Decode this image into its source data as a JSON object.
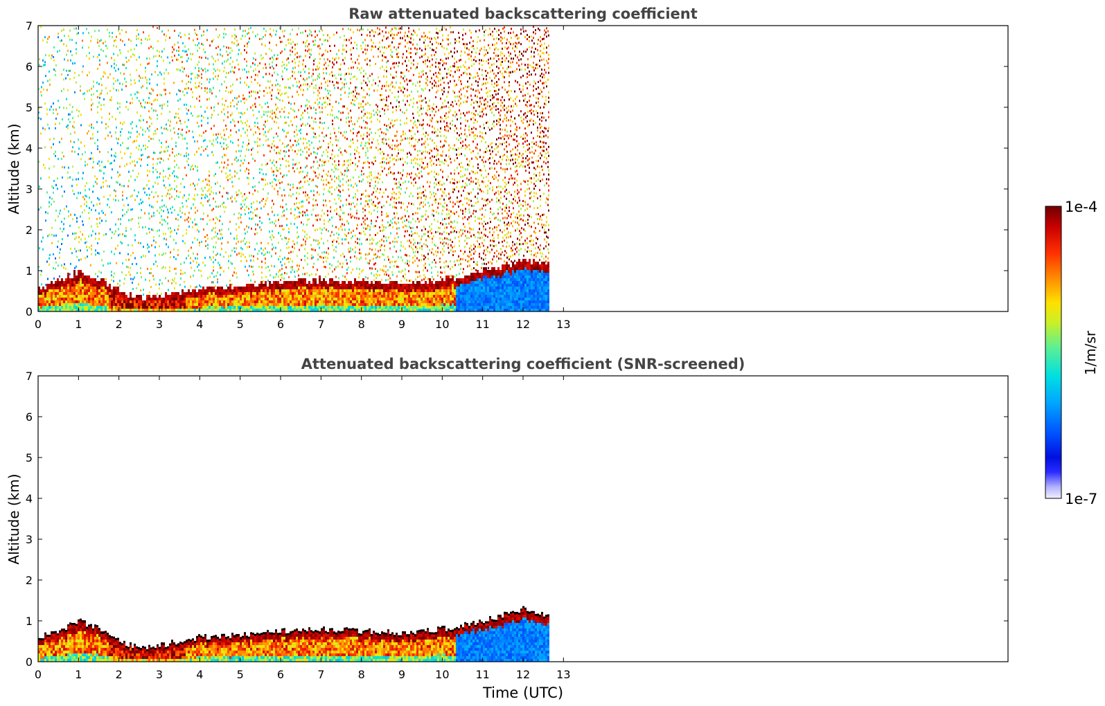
{
  "chart_data": [
    {
      "type": "heatmap",
      "title": "Raw attenuated backscattering coefficient",
      "xlabel": "",
      "ylabel": "Altitude (km)",
      "xlim": [
        0,
        24
      ],
      "ylim": [
        0,
        7
      ],
      "xticks": [
        "0",
        "1",
        "2",
        "3",
        "4",
        "5",
        "6",
        "7",
        "8",
        "9",
        "10",
        "11",
        "12",
        "13"
      ],
      "yticks": [
        "0",
        "1",
        "2",
        "3",
        "4",
        "5",
        "6",
        "7"
      ],
      "data_end_hour": 12.65,
      "boundary_layer_top_km": [
        {
          "t": 0.0,
          "z": 0.55
        },
        {
          "t": 0.5,
          "z": 0.7
        },
        {
          "t": 1.0,
          "z": 0.95
        },
        {
          "t": 1.5,
          "z": 0.75
        },
        {
          "t": 2.0,
          "z": 0.45
        },
        {
          "t": 2.5,
          "z": 0.3
        },
        {
          "t": 3.0,
          "z": 0.35
        },
        {
          "t": 3.5,
          "z": 0.45
        },
        {
          "t": 4.0,
          "z": 0.55
        },
        {
          "t": 5.0,
          "z": 0.6
        },
        {
          "t": 6.0,
          "z": 0.7
        },
        {
          "t": 7.0,
          "z": 0.75
        },
        {
          "t": 8.0,
          "z": 0.7
        },
        {
          "t": 9.0,
          "z": 0.65
        },
        {
          "t": 10.0,
          "z": 0.75
        },
        {
          "t": 11.0,
          "z": 0.95
        },
        {
          "t": 11.5,
          "z": 1.1
        },
        {
          "t": 12.0,
          "z": 1.25
        },
        {
          "t": 12.6,
          "z": 1.1
        }
      ]
    },
    {
      "type": "heatmap",
      "title": "Attenuated backscattering coefficient (SNR-screened)",
      "xlabel": "Time (UTC)",
      "ylabel": "Altitude (km)",
      "xlim": [
        0,
        24
      ],
      "ylim": [
        0,
        7
      ],
      "xticks": [
        "0",
        "1",
        "2",
        "3",
        "4",
        "5",
        "6",
        "7",
        "8",
        "9",
        "10",
        "11",
        "12",
        "13"
      ],
      "yticks": [
        "0",
        "1",
        "2",
        "3",
        "4",
        "5",
        "6",
        "7"
      ],
      "data_end_hour": 12.65
    }
  ],
  "colorbar": {
    "max_label": "1e-4",
    "min_label": "1e-7",
    "unit_label": "1/m/sr",
    "scale": "log",
    "range": [
      1e-07,
      0.0001
    ],
    "colormap": [
      "#7f0000",
      "#cc0000",
      "#ff3300",
      "#ff8800",
      "#ffdd00",
      "#b5f03c",
      "#40ffb0",
      "#00d8f0",
      "#00a0ff",
      "#0040ff",
      "#0000d8",
      "#8080ff",
      "#e8e8ff"
    ]
  },
  "colors": {
    "title_text": "#444444",
    "axis_text": "#000000",
    "frame": "#000000"
  }
}
